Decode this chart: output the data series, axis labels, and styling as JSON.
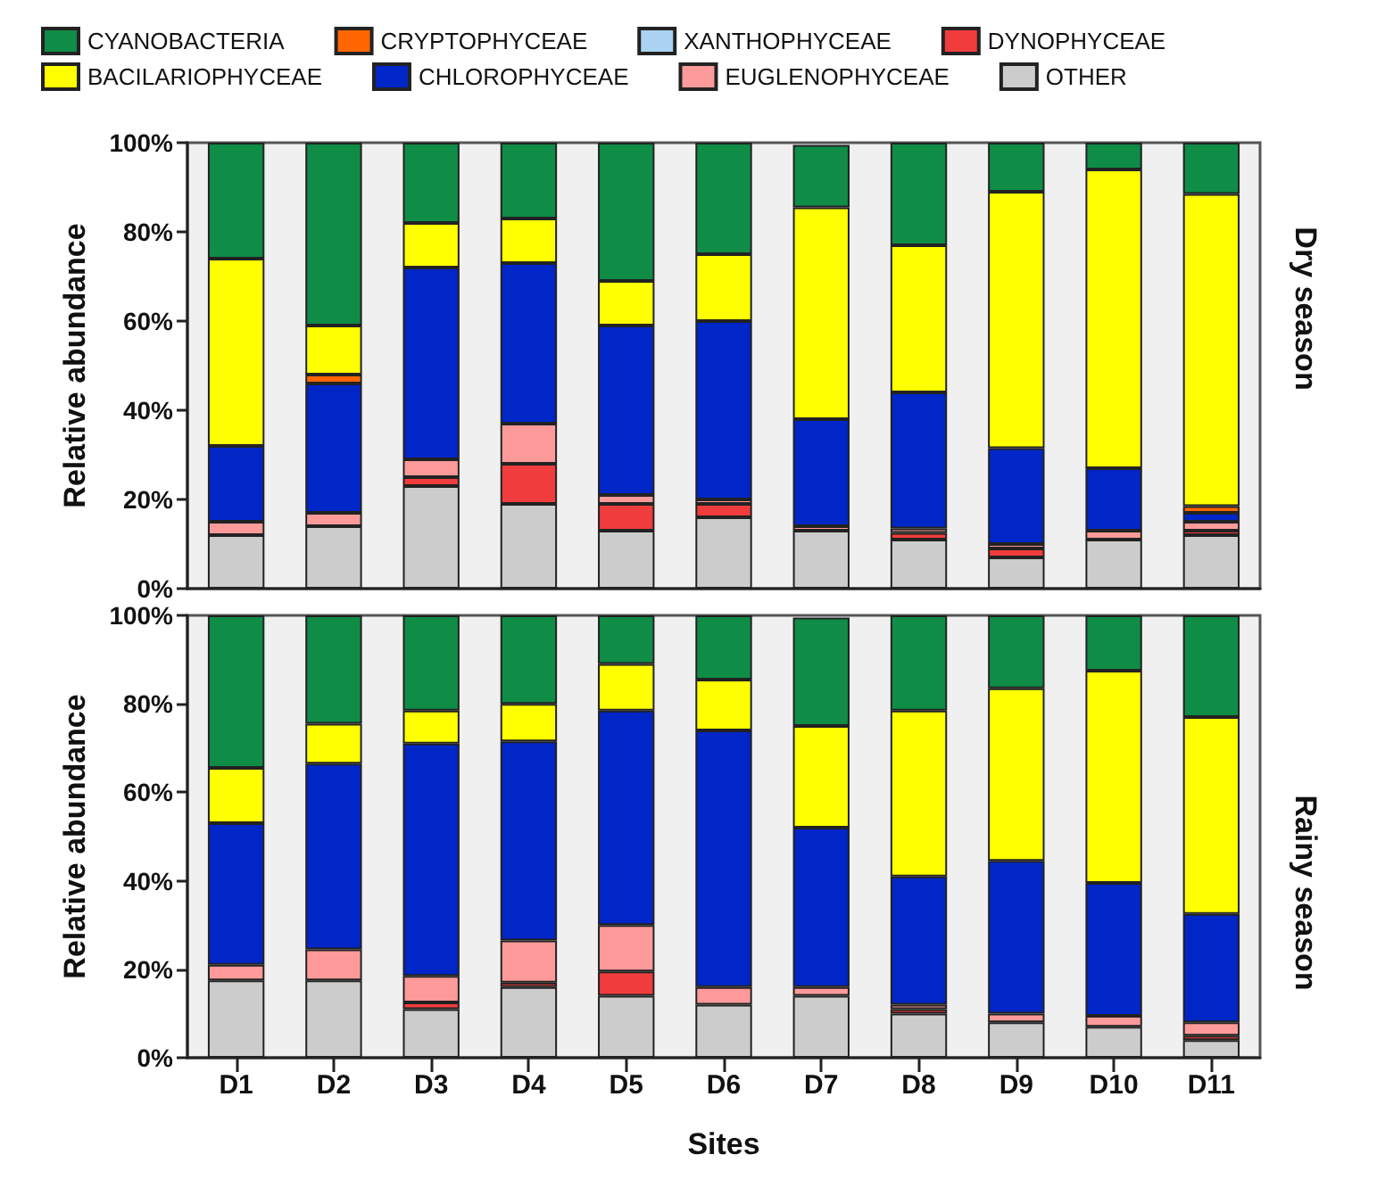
{
  "chart_data": [
    {
      "type": "bar",
      "annotations": [
        "Dry season"
      ],
      "ylabel": "Relative abundance",
      "stacked": true,
      "legend": "top",
      "grid": false,
      "tick_labels": "y",
      "categories": [
        null,
        null,
        null,
        null,
        null,
        null,
        null,
        null,
        null,
        null,
        null
      ],
      "ylim": [
        0,
        100
      ],
      "yticks": [
        {
          "value": 0,
          "label": "0%"
        },
        {
          "value": 20,
          "label": "20%"
        },
        {
          "value": 40,
          "label": "40%"
        },
        {
          "value": 60,
          "label": "60%"
        },
        {
          "value": 80,
          "label": "80%"
        },
        {
          "value": 100,
          "label": "100%"
        }
      ],
      "series": [
        {
          "name": "OTHER",
          "color": "#cccccc",
          "values": [
            12,
            14,
            23,
            19,
            13,
            16,
            13,
            11,
            7,
            11,
            12
          ]
        },
        {
          "name": "DYNOPHYCEAE",
          "color": "#f03c3c",
          "values": [
            0,
            0,
            2,
            9,
            6,
            3,
            null,
            1.5,
            2,
            0,
            1
          ]
        },
        {
          "name": "EUGLENOPHYCEAE",
          "color": "#ff9a9a",
          "values": [
            3,
            3,
            4,
            9,
            2,
            1,
            1,
            1,
            1,
            2,
            2
          ]
        },
        {
          "name": "CHLOROPHYCEAE",
          "color": "#0026c8",
          "values": [
            17,
            29,
            43,
            36,
            38,
            40,
            24,
            30.5,
            21.5,
            14,
            2
          ]
        },
        {
          "name": "XANTHOPHYCEAE",
          "color": "#a9d3f0",
          "values": [
            0,
            0,
            0,
            0,
            0,
            0,
            0,
            0,
            0,
            0,
            0
          ]
        },
        {
          "name": "CRYPTOPHYCEAE",
          "color": "#ff6600",
          "values": [
            0,
            2,
            0,
            0,
            0,
            0,
            0,
            0,
            0,
            0,
            1.5
          ]
        },
        {
          "name": "BACILARIOPHYCEAE",
          "color": "#ffff00",
          "values": [
            42,
            11,
            10,
            10,
            10,
            15,
            47.5,
            33,
            57.5,
            67,
            70
          ]
        },
        {
          "name": "CYANOBACTERIA",
          "color": "#0f8c46",
          "values": [
            26,
            41,
            18,
            17,
            31,
            25,
            14,
            23,
            11,
            6,
            11.5
          ]
        }
      ]
    },
    {
      "type": "bar",
      "annotations": [
        "Rainy season"
      ],
      "ylabel": "Relative abundance",
      "xlabel": "Sites",
      "stacked": true,
      "grid": false,
      "categories": [
        "D1",
        "D2",
        "D3",
        "D4",
        "D5",
        "D6",
        "D7",
        "D8",
        "D9",
        "D10",
        "D11"
      ],
      "ylim": [
        0,
        100
      ],
      "yticks": [
        {
          "value": 0,
          "label": "0%"
        },
        {
          "value": 20,
          "label": "20%"
        },
        {
          "value": 40,
          "label": "40%"
        },
        {
          "value": 60,
          "label": "60%"
        },
        {
          "value": 80,
          "label": "80%"
        },
        {
          "value": 100,
          "label": "100%"
        }
      ],
      "series": [
        {
          "color": "#cccccc",
          "values": [
            17.5,
            17.5,
            11,
            16,
            14,
            12,
            14,
            10,
            8,
            7,
            4
          ]
        },
        {
          "color": "#f03c3c",
          "values": [
            0,
            0,
            1.5,
            1,
            5.5,
            0,
            null,
            1,
            0,
            0,
            1
          ]
        },
        {
          "color": "#ff9a9a",
          "values": [
            3.5,
            7,
            6,
            9.5,
            10.5,
            4,
            2,
            1,
            2,
            2.5,
            3
          ]
        },
        {
          "color": "#0026c8",
          "values": [
            32,
            42,
            52.5,
            45,
            48.5,
            58,
            36,
            29,
            34.5,
            30,
            24.5
          ]
        },
        {
          "color": "#a9d3f0",
          "values": [
            0,
            0,
            0,
            0,
            0,
            0,
            0,
            0,
            0,
            0,
            0
          ]
        },
        {
          "color": "#ff6600",
          "values": [
            0,
            0,
            0,
            0,
            0,
            0,
            0,
            0,
            0,
            0,
            0
          ]
        },
        {
          "color": "#ffff00",
          "values": [
            12.5,
            9,
            7.5,
            8.5,
            10.5,
            11.5,
            23,
            37.5,
            39,
            48,
            44.5
          ]
        },
        {
          "color": "#0f8c46",
          "values": [
            34.5,
            24.5,
            21.5,
            20,
            11,
            14.5,
            24.5,
            21.5,
            16.5,
            12.5,
            23
          ]
        }
      ]
    }
  ]
}
